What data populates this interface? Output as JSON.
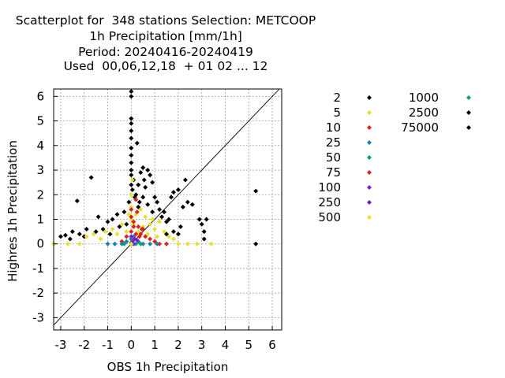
{
  "title_lines": [
    "Scatterplot for  348 stations Selection: METCOOP",
    "1h Precipitation [mm/1h]",
    "Period: 20240416-20240419",
    "Used  00,06,12,18  + 01 02 ... 12"
  ],
  "chart_data": {
    "type": "scatter",
    "title": "Scatterplot for  348 stations Selection: METCOOP",
    "subtitle": [
      "1h Precipitation [mm/1h]",
      "Period: 20240416-20240419",
      "Used  00,06,12,18  + 01 02 ... 12"
    ],
    "xlabel": "OBS 1h Precipitation",
    "ylabel": "Highres 1h Precipitation",
    "xlim": [
      -3.3,
      6.4
    ],
    "ylim": [
      -3.5,
      6.3
    ],
    "xticks": [
      -3,
      -2,
      -1,
      0,
      1,
      2,
      3,
      4,
      5,
      6
    ],
    "yticks": [
      -3,
      -2,
      -1,
      0,
      1,
      2,
      3,
      4,
      5,
      6
    ],
    "grid": true,
    "diagonal": true,
    "legend_position": "right",
    "series": [
      {
        "name": "2",
        "color": "#000000",
        "points": [
          [
            -3.0,
            0.3
          ],
          [
            -2.8,
            0.35
          ],
          [
            -2.6,
            0.2
          ],
          [
            -2.5,
            0.5
          ],
          [
            -2.2,
            0.4
          ],
          [
            -2.0,
            0.3
          ],
          [
            -1.9,
            0.6
          ],
          [
            -1.7,
            2.7
          ],
          [
            -2.3,
            1.75
          ],
          [
            -1.5,
            0.5
          ],
          [
            -1.4,
            1.1
          ],
          [
            -1.2,
            0.6
          ],
          [
            -1.0,
            0.9
          ],
          [
            -0.9,
            0.4
          ],
          [
            -0.8,
            1.0
          ],
          [
            -0.6,
            1.2
          ],
          [
            -0.5,
            0.7
          ],
          [
            -0.3,
            1.3
          ],
          [
            -0.2,
            0.8
          ],
          [
            0.0,
            6.2
          ],
          [
            0.0,
            6.0
          ],
          [
            0.0,
            5.1
          ],
          [
            0.0,
            4.9
          ],
          [
            0.0,
            4.6
          ],
          [
            0.0,
            4.3
          ],
          [
            0.0,
            3.9
          ],
          [
            0.0,
            3.6
          ],
          [
            0.0,
            3.3
          ],
          [
            0.0,
            3.0
          ],
          [
            0.0,
            2.8
          ],
          [
            0.0,
            2.4
          ],
          [
            0.05,
            2.2
          ],
          [
            0.1,
            2.6
          ],
          [
            0.2,
            2.0
          ],
          [
            0.25,
            4.1
          ],
          [
            0.3,
            2.4
          ],
          [
            0.4,
            2.9
          ],
          [
            0.5,
            3.1
          ],
          [
            0.55,
            2.6
          ],
          [
            0.6,
            2.3
          ],
          [
            0.7,
            3.0
          ],
          [
            0.8,
            2.8
          ],
          [
            0.9,
            2.5
          ],
          [
            1.0,
            1.9
          ],
          [
            1.1,
            1.7
          ],
          [
            1.2,
            1.4
          ],
          [
            1.3,
            1.1
          ],
          [
            1.4,
            1.3
          ],
          [
            1.5,
            0.9
          ],
          [
            1.6,
            1.0
          ],
          [
            1.7,
            1.9
          ],
          [
            1.8,
            2.1
          ],
          [
            2.0,
            2.2
          ],
          [
            2.1,
            0.7
          ],
          [
            2.2,
            1.5
          ],
          [
            2.3,
            2.6
          ],
          [
            2.4,
            1.7
          ],
          [
            2.6,
            1.6
          ],
          [
            2.9,
            1.0
          ],
          [
            3.0,
            0.8
          ],
          [
            3.1,
            0.5
          ],
          [
            3.2,
            1.0
          ],
          [
            3.1,
            0.2
          ],
          [
            5.3,
            2.15
          ],
          [
            5.3,
            0.0
          ],
          [
            1.5,
            0.4
          ],
          [
            1.8,
            0.5
          ],
          [
            2.0,
            0.4
          ],
          [
            0.3,
            1.5
          ],
          [
            0.5,
            1.9
          ],
          [
            0.7,
            1.6
          ],
          [
            0.9,
            1.3
          ],
          [
            -0.1,
            1.7
          ],
          [
            0.15,
            1.9
          ],
          [
            0.35,
            1.7
          ]
        ]
      },
      {
        "name": "5",
        "color": "#e8e030",
        "points": [
          [
            -3.3,
            0.0
          ],
          [
            -2.7,
            0.0
          ],
          [
            -2.2,
            0.0
          ],
          [
            -1.9,
            0.3
          ],
          [
            -1.6,
            0.4
          ],
          [
            -1.3,
            0.2
          ],
          [
            -1.1,
            0.5
          ],
          [
            -0.8,
            0.6
          ],
          [
            -0.6,
            0.4
          ],
          [
            -0.4,
            0.8
          ],
          [
            -0.2,
            0.5
          ],
          [
            0.0,
            1.0
          ],
          [
            0.0,
            1.5
          ],
          [
            0.0,
            2.0
          ],
          [
            0.05,
            2.6
          ],
          [
            0.2,
            1.2
          ],
          [
            0.4,
            1.4
          ],
          [
            0.6,
            1.1
          ],
          [
            0.8,
            0.8
          ],
          [
            1.0,
            0.6
          ],
          [
            1.2,
            0.9
          ],
          [
            1.4,
            0.5
          ],
          [
            1.6,
            0.3
          ],
          [
            1.8,
            0.2
          ],
          [
            2.0,
            0.0
          ],
          [
            2.4,
            0.0
          ],
          [
            2.8,
            0.0
          ],
          [
            3.4,
            0.0
          ],
          [
            0.3,
            0.5
          ],
          [
            0.5,
            0.7
          ],
          [
            0.7,
            0.4
          ],
          [
            0.1,
            0.8
          ],
          [
            -0.1,
            1.2
          ],
          [
            0.9,
            1.0
          ],
          [
            1.1,
            0.3
          ]
        ]
      },
      {
        "name": "10",
        "color": "#d8231f",
        "points": [
          [
            0.0,
            1.4
          ],
          [
            0.0,
            1.1
          ],
          [
            0.1,
            0.9
          ],
          [
            0.2,
            1.8
          ],
          [
            0.3,
            0.7
          ],
          [
            0.4,
            0.4
          ],
          [
            0.5,
            0.6
          ],
          [
            0.6,
            0.3
          ],
          [
            0.8,
            0.2
          ],
          [
            1.0,
            0.1
          ],
          [
            1.2,
            0.0
          ],
          [
            1.5,
            0.0
          ],
          [
            -0.2,
            0.3
          ],
          [
            -0.4,
            0.1
          ],
          [
            0.25,
            1.3
          ]
        ]
      },
      {
        "name": "25",
        "color": "#1781b0",
        "points": [
          [
            -1.0,
            0.0
          ],
          [
            -0.7,
            0.0
          ],
          [
            -0.4,
            0.0
          ],
          [
            -0.2,
            0.1
          ],
          [
            0.0,
            0.2
          ],
          [
            0.1,
            0.3
          ],
          [
            0.3,
            0.1
          ],
          [
            0.5,
            0.0
          ],
          [
            0.8,
            0.0
          ],
          [
            1.1,
            0.0
          ]
        ]
      },
      {
        "name": "50",
        "color": "#0b9f78",
        "points": [
          [
            -0.3,
            0.0
          ],
          [
            0.0,
            0.05
          ],
          [
            0.2,
            0.0
          ],
          [
            0.4,
            0.0
          ]
        ]
      },
      {
        "name": "75",
        "color": "#e0201a",
        "points": [
          [
            0.0,
            0.5
          ],
          [
            0.1,
            0.7
          ],
          [
            0.2,
            0.4
          ],
          [
            0.35,
            0.3
          ],
          [
            0.45,
            0.6
          ]
        ]
      },
      {
        "name": "100",
        "color": "#7d1fd0",
        "points": [
          [
            0.0,
            0.3
          ],
          [
            0.05,
            0.1
          ],
          [
            0.15,
            0.2
          ],
          [
            0.25,
            0.15
          ]
        ]
      },
      {
        "name": "250",
        "color": "#6a20c8",
        "points": [
          [
            0.0,
            0.0
          ],
          [
            0.1,
            0.0
          ],
          [
            0.05,
            0.05
          ]
        ]
      },
      {
        "name": "500",
        "color": "#e8e030",
        "points": [
          [
            0.0,
            0.0
          ]
        ]
      },
      {
        "name": "1000",
        "color": "#0b9f78",
        "points": []
      },
      {
        "name": "2500",
        "color": "#000000",
        "points": []
      },
      {
        "name": "75000",
        "color": "#000000",
        "points": []
      }
    ]
  }
}
